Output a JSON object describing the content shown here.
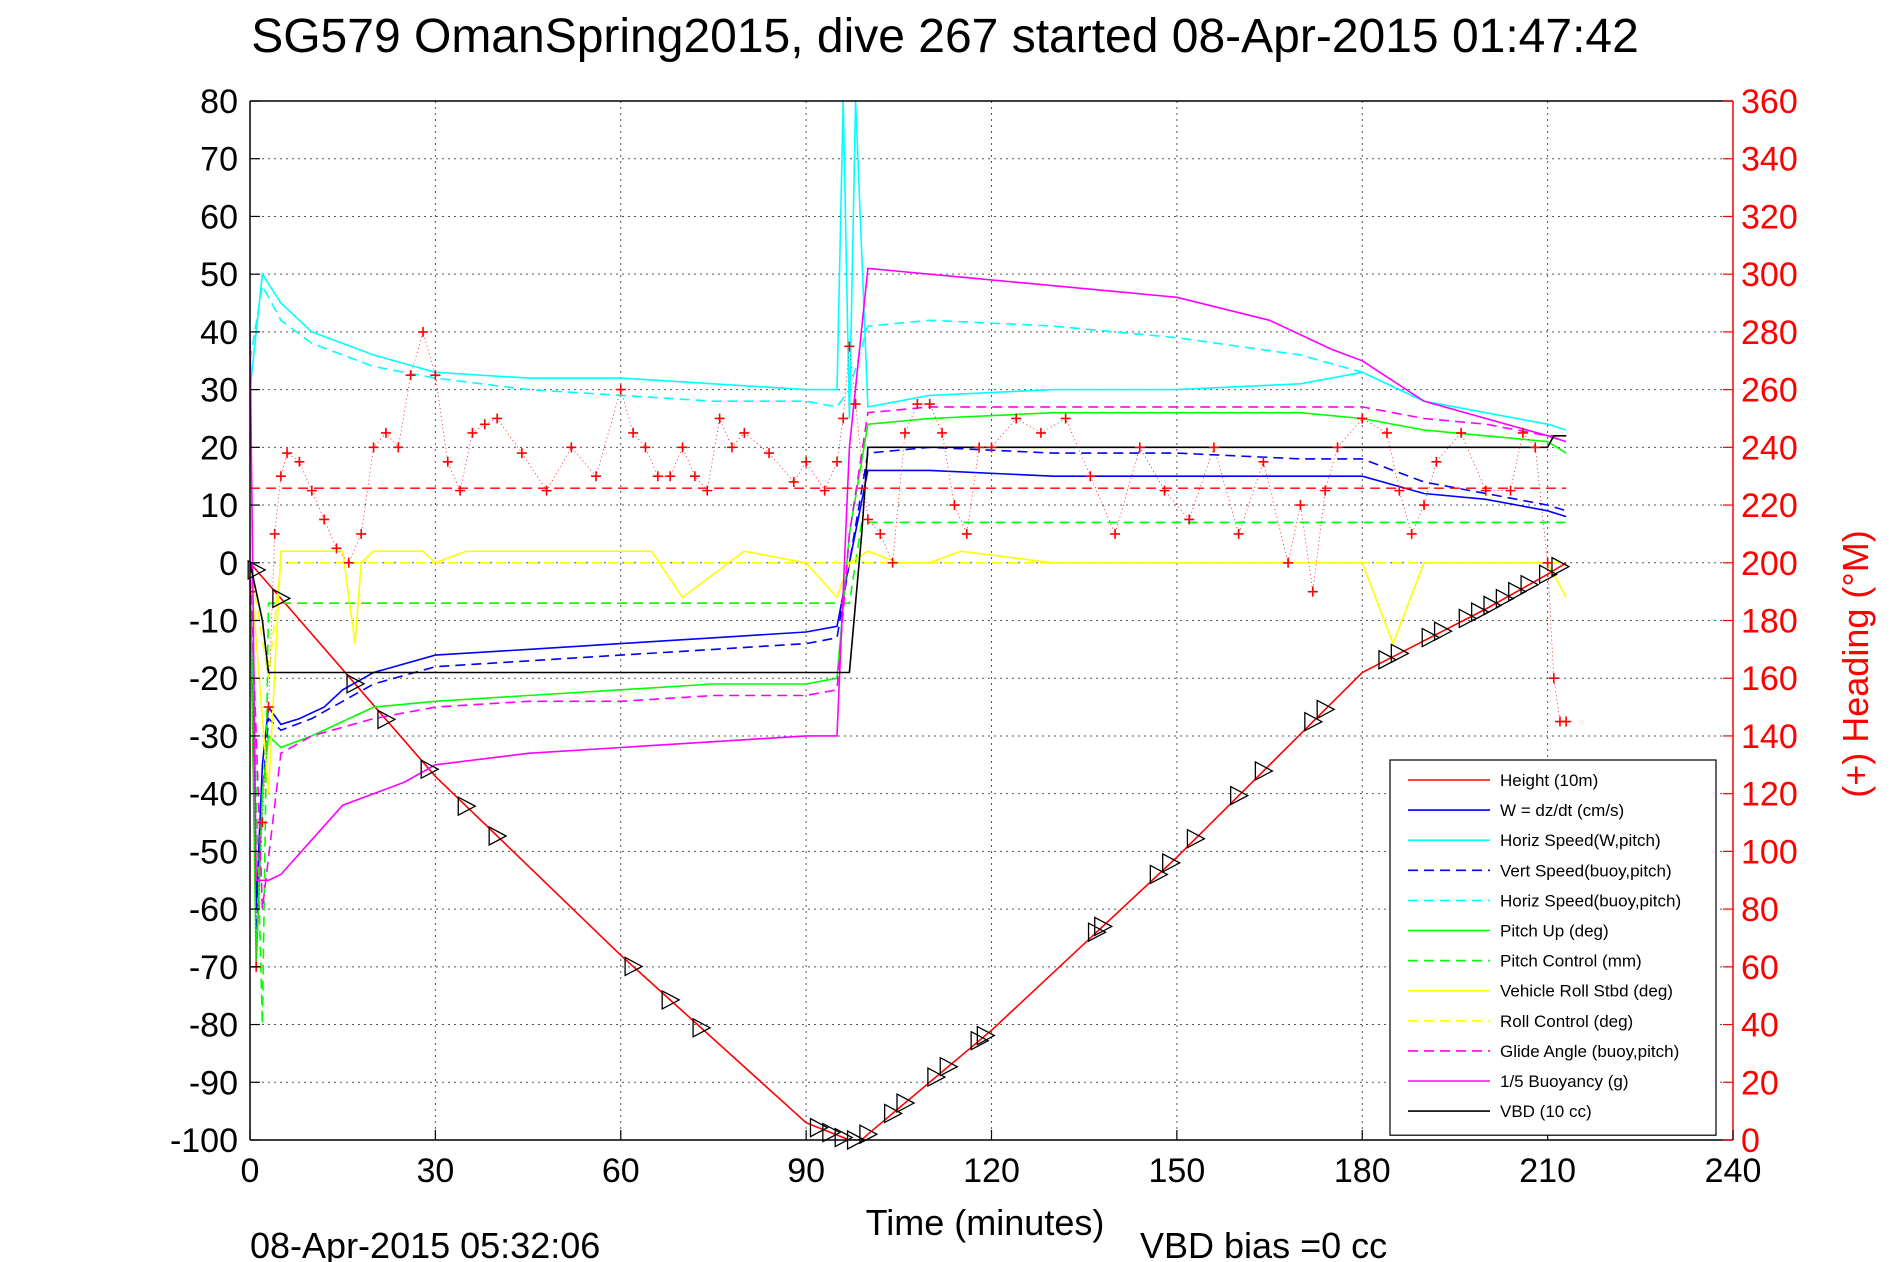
{
  "chart_data": {
    "type": "line",
    "title": "SG579 OmanSpring2015, dive 267 started 08-Apr-2015 01:47:42",
    "xlabel": "Time (minutes)",
    "ylabel": "",
    "ylabel_right": "(+) Heading (°M)",
    "xlim": [
      0,
      240
    ],
    "ylim": [
      -100,
      80
    ],
    "ylim_right": [
      0,
      360
    ],
    "xticks": [
      "0",
      "30",
      "60",
      "90",
      "120",
      "150",
      "180",
      "210",
      "240"
    ],
    "yticks": [
      "80",
      "70",
      "60",
      "50",
      "40",
      "30",
      "20",
      "10",
      "0",
      "-10",
      "-20",
      "-30",
      "-40",
      "-50",
      "-60",
      "-70",
      "-80",
      "-90",
      "-100"
    ],
    "yticks_right": [
      "360",
      "340",
      "320",
      "300",
      "280",
      "260",
      "240",
      "220",
      "200",
      "180",
      "160",
      "140",
      "120",
      "100",
      "80",
      "60",
      "40",
      "20",
      "0"
    ],
    "grid": true,
    "legend_position": "bottom-right",
    "footer_date": "08-Apr-2015 05:32:06",
    "footer_note": "VBD bias =0 cc",
    "colors": {
      "red": "#ff0000",
      "blue": "#0000ff",
      "cyan": "#00ffff",
      "green": "#00ff00",
      "yellow": "#ffff00",
      "magenta": "#ff00ff",
      "black": "#000000"
    },
    "series": [
      {
        "name": "Height (10m)",
        "color": "#ff0000",
        "dash": false,
        "x": [
          0,
          30,
          60,
          90,
          97,
          99,
          100,
          120,
          150,
          180,
          200,
          210,
          213
        ],
        "y": [
          0,
          -37,
          -68,
          -97,
          -100,
          -100,
          -99,
          -81,
          -51,
          -19,
          -8,
          -2,
          0
        ]
      },
      {
        "name": "W = dz/dt (cm/s)",
        "color": "#0000ff",
        "dash": false,
        "x": [
          0,
          1,
          2,
          3,
          5,
          8,
          12,
          15,
          20,
          30,
          45,
          60,
          75,
          90,
          95,
          97,
          100,
          110,
          130,
          150,
          170,
          180,
          190,
          200,
          210,
          213
        ],
        "y": [
          0,
          -60,
          -35,
          -25,
          -28,
          -27,
          -25,
          -22,
          -19,
          -16,
          -15,
          -14,
          -13,
          -12,
          -11,
          0,
          16,
          16,
          15,
          15,
          15,
          15,
          12,
          11,
          9,
          8
        ]
      },
      {
        "name": "Horiz Speed(W,pitch)",
        "color": "#00ffff",
        "dash": false,
        "x": [
          0,
          2,
          5,
          10,
          15,
          20,
          30,
          45,
          60,
          75,
          90,
          95,
          96,
          97,
          98,
          100,
          110,
          130,
          150,
          170,
          180,
          190,
          200,
          210,
          213
        ],
        "y": [
          30,
          50,
          45,
          40,
          38,
          36,
          33,
          32,
          32,
          31,
          30,
          30,
          80,
          25,
          80,
          27,
          29,
          30,
          30,
          31,
          33,
          28,
          26,
          24,
          23
        ]
      },
      {
        "name": "Vert Speed(buoy,pitch)",
        "color": "#0000ff",
        "dash": true,
        "x": [
          0,
          1,
          2,
          3,
          5,
          10,
          20,
          30,
          45,
          60,
          75,
          90,
          95,
          97,
          100,
          110,
          130,
          150,
          170,
          180,
          190,
          200,
          210,
          213
        ],
        "y": [
          0,
          -65,
          -40,
          -27,
          -29,
          -27,
          -21,
          -18,
          -17,
          -16,
          -15,
          -14,
          -13,
          0,
          19,
          20,
          19,
          19,
          18,
          18,
          14,
          12,
          10,
          9
        ]
      },
      {
        "name": "Horiz Speed(buoy,pitch)",
        "color": "#00ffff",
        "dash": true,
        "x": [
          0,
          2,
          5,
          10,
          20,
          30,
          45,
          60,
          75,
          90,
          95,
          97,
          100,
          110,
          130,
          150,
          170,
          180,
          190,
          200,
          210,
          213
        ],
        "y": [
          35,
          48,
          42,
          38,
          34,
          32,
          30,
          29,
          28,
          28,
          27,
          30,
          41,
          42,
          41,
          39,
          36,
          33,
          28,
          25,
          22,
          21
        ]
      },
      {
        "name": "Pitch Up (deg)",
        "color": "#00ff00",
        "dash": false,
        "x": [
          0,
          1,
          2,
          3,
          5,
          10,
          20,
          30,
          45,
          60,
          75,
          90,
          95,
          97,
          100,
          110,
          130,
          150,
          170,
          180,
          190,
          200,
          210,
          213
        ],
        "y": [
          0,
          -70,
          -40,
          -30,
          -32,
          -30,
          -25,
          -24,
          -23,
          -22,
          -21,
          -21,
          -20,
          5,
          24,
          25,
          26,
          26,
          26,
          25,
          23,
          22,
          21,
          19
        ]
      },
      {
        "name": "Pitch Control (mm)",
        "color": "#00ff00",
        "dash": true,
        "x": [
          0,
          2,
          3,
          97,
          99,
          213
        ],
        "y": [
          0,
          -80,
          -7,
          -7,
          7,
          7
        ]
      },
      {
        "name": "Vehicle Roll Stbd (deg)",
        "color": "#ffff00",
        "dash": false,
        "x": [
          0,
          3,
          5,
          10,
          15,
          17,
          18,
          20,
          25,
          28,
          30,
          35,
          40,
          50,
          60,
          65,
          70,
          80,
          90,
          95,
          97,
          100,
          105,
          110,
          115,
          130,
          150,
          170,
          180,
          185,
          190,
          200,
          210,
          213
        ],
        "y": [
          0,
          -40,
          2,
          2,
          2,
          -14,
          0,
          2,
          2,
          2,
          0,
          2,
          2,
          2,
          2,
          2,
          -6,
          2,
          0,
          -6,
          0,
          2,
          0,
          0,
          2,
          0,
          0,
          0,
          0,
          -14,
          0,
          0,
          0,
          -6
        ]
      },
      {
        "name": "Roll Control (deg)",
        "color": "#ffff00",
        "dash": true,
        "x": [
          0,
          3,
          5,
          97,
          99,
          213
        ],
        "y": [
          0,
          -20,
          0,
          0,
          0,
          0
        ]
      },
      {
        "name": "Glide Angle (buoy,pitch)",
        "color": "#ff00ff",
        "dash": true,
        "x": [
          0,
          2,
          5,
          10,
          20,
          30,
          45,
          60,
          75,
          90,
          95,
          97,
          100,
          110,
          130,
          150,
          170,
          180,
          190,
          200,
          210,
          213
        ],
        "y": [
          0,
          -60,
          -33,
          -30,
          -27,
          -25,
          -24,
          -24,
          -23,
          -23,
          -22,
          5,
          26,
          27,
          27,
          27,
          27,
          27,
          25,
          24,
          22,
          22
        ]
      },
      {
        "name": "1/5 Buoyancy (g)",
        "color": "#ff00ff",
        "dash": false,
        "x": [
          0,
          1,
          3,
          5,
          10,
          15,
          20,
          25,
          30,
          45,
          60,
          75,
          90,
          95,
          97,
          100,
          110,
          130,
          150,
          165,
          175,
          180,
          190,
          200,
          210,
          213
        ],
        "y": [
          40,
          -55,
          -55,
          -54,
          -48,
          -42,
          -40,
          -38,
          -35,
          -33,
          -32,
          -31,
          -30,
          -30,
          20,
          51,
          50,
          48,
          46,
          42,
          37,
          35,
          28,
          25,
          22,
          21
        ]
      },
      {
        "name": "VBD (10 cc)",
        "color": "#000000",
        "dash": false,
        "x": [
          0,
          2,
          3,
          95,
          97,
          99,
          100,
          210,
          211,
          213
        ],
        "y": [
          0,
          -10,
          -19,
          -19,
          -19,
          5,
          20,
          20,
          22,
          22
        ]
      }
    ],
    "heading": {
      "name": "(+) Heading",
      "color": "#ff0000",
      "marker": "+",
      "x": [
        0,
        1,
        2,
        3,
        4,
        5,
        6,
        8,
        10,
        12,
        14,
        16,
        18,
        20,
        22,
        24,
        26,
        28,
        30,
        32,
        34,
        36,
        38,
        40,
        44,
        48,
        52,
        56,
        60,
        62,
        64,
        66,
        68,
        70,
        72,
        74,
        76,
        78,
        80,
        84,
        88,
        90,
        93,
        95,
        96,
        97,
        98,
        100,
        102,
        104,
        106,
        108,
        110,
        112,
        114,
        116,
        118,
        120,
        124,
        128,
        132,
        136,
        140,
        144,
        148,
        152,
        156,
        160,
        164,
        168,
        170,
        172,
        174,
        176,
        180,
        184,
        186,
        188,
        190,
        192,
        196,
        200,
        204,
        206,
        208,
        210,
        211,
        212,
        213
      ],
      "y": [
        190,
        60,
        110,
        150,
        210,
        230,
        238,
        235,
        225,
        215,
        205,
        200,
        210,
        240,
        245,
        240,
        265,
        280,
        265,
        235,
        225,
        245,
        248,
        250,
        238,
        225,
        240,
        230,
        260,
        245,
        240,
        230,
        230,
        240,
        230,
        225,
        250,
        240,
        245,
        238,
        228,
        235,
        225,
        235,
        250,
        275,
        255,
        215,
        210,
        200,
        245,
        255,
        255,
        245,
        220,
        210,
        240,
        240,
        250,
        245,
        250,
        230,
        210,
        240,
        225,
        215,
        240,
        210,
        235,
        200,
        220,
        190,
        225,
        240,
        250,
        245,
        225,
        210,
        220,
        235,
        245,
        225,
        225,
        245,
        240,
        200,
        160,
        145,
        145
      ]
    },
    "height_markers_x": [
      1,
      5,
      17,
      22,
      29,
      35,
      40,
      62,
      68,
      73,
      92,
      94,
      96,
      98,
      100,
      104,
      106,
      111,
      113,
      118,
      119,
      137,
      138,
      147,
      149,
      153,
      160,
      164,
      172,
      174,
      184,
      186,
      191,
      193,
      197,
      199,
      201,
      203,
      205,
      207,
      210,
      212
    ]
  }
}
